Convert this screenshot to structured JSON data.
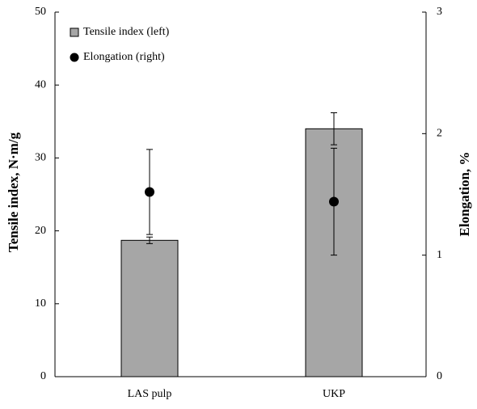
{
  "chart_data": {
    "type": "bar",
    "categories": [
      "LAS pulp",
      "UKP"
    ],
    "ylabel": "Tensile  index, N·m/g",
    "y2label": "Elongation,  %",
    "ylim": [
      0,
      50
    ],
    "yticks": [
      0,
      10,
      20,
      30,
      40,
      50
    ],
    "y2lim": [
      0,
      3
    ],
    "y2ticks": [
      0,
      1,
      2,
      3
    ],
    "series": [
      {
        "name": "Tensile index (left)",
        "type": "bar",
        "color": "#a6a6a6",
        "values": [
          18.7,
          34.0
        ],
        "errors": [
          0.45,
          2.2
        ]
      },
      {
        "name": "Elongation (right)",
        "type": "scatter",
        "axis": "y2",
        "color": "#000000",
        "values": [
          1.52,
          1.44
        ],
        "errors": [
          0.35,
          0.44
        ]
      }
    ]
  }
}
